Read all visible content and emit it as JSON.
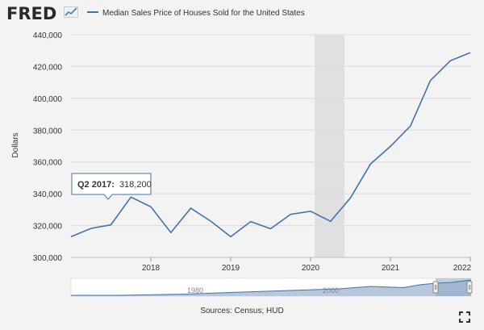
{
  "header": {
    "logo_text": "FRED",
    "logo_icon": "trend-line-icon",
    "legend_label": "Median Sales Price of Houses Sold for the United States",
    "series_color": "#4572a7"
  },
  "tooltip": {
    "label": "Q2 2017:",
    "value": "318,200"
  },
  "navigator": {
    "labels": [
      "1980",
      "2000"
    ]
  },
  "footer": {
    "sources": "Sources: Census; HUD",
    "expand_icon": "fullscreen-expand-icon"
  },
  "chart_data": {
    "type": "line",
    "ylabel": "Dollars",
    "xlabel": "",
    "ylim": [
      300000,
      440000
    ],
    "yticks": [
      "300,000",
      "320,000",
      "340,000",
      "360,000",
      "380,000",
      "400,000",
      "420,000",
      "440,000"
    ],
    "xticks": [
      "2018",
      "2019",
      "2020",
      "2021",
      "2022"
    ],
    "recession_shading": [
      "2020 Q1",
      "2020 Q2"
    ],
    "series": [
      {
        "name": "Median Sales Price of Houses Sold for the United States",
        "x": [
          "2017 Q1",
          "2017 Q2",
          "2017 Q3",
          "2017 Q4",
          "2018 Q1",
          "2018 Q2",
          "2018 Q3",
          "2018 Q4",
          "2019 Q1",
          "2019 Q2",
          "2019 Q3",
          "2019 Q4",
          "2020 Q1",
          "2020 Q2",
          "2020 Q3",
          "2020 Q4",
          "2021 Q1",
          "2021 Q2",
          "2021 Q3",
          "2021 Q4",
          "2022 Q1"
        ],
        "values": [
          313000,
          318200,
          320500,
          337900,
          331800,
          315600,
          330900,
          322800,
          313000,
          322500,
          318000,
          327100,
          329000,
          322600,
          337500,
          358700,
          369800,
          382600,
          411200,
          423600,
          428700
        ]
      }
    ]
  }
}
